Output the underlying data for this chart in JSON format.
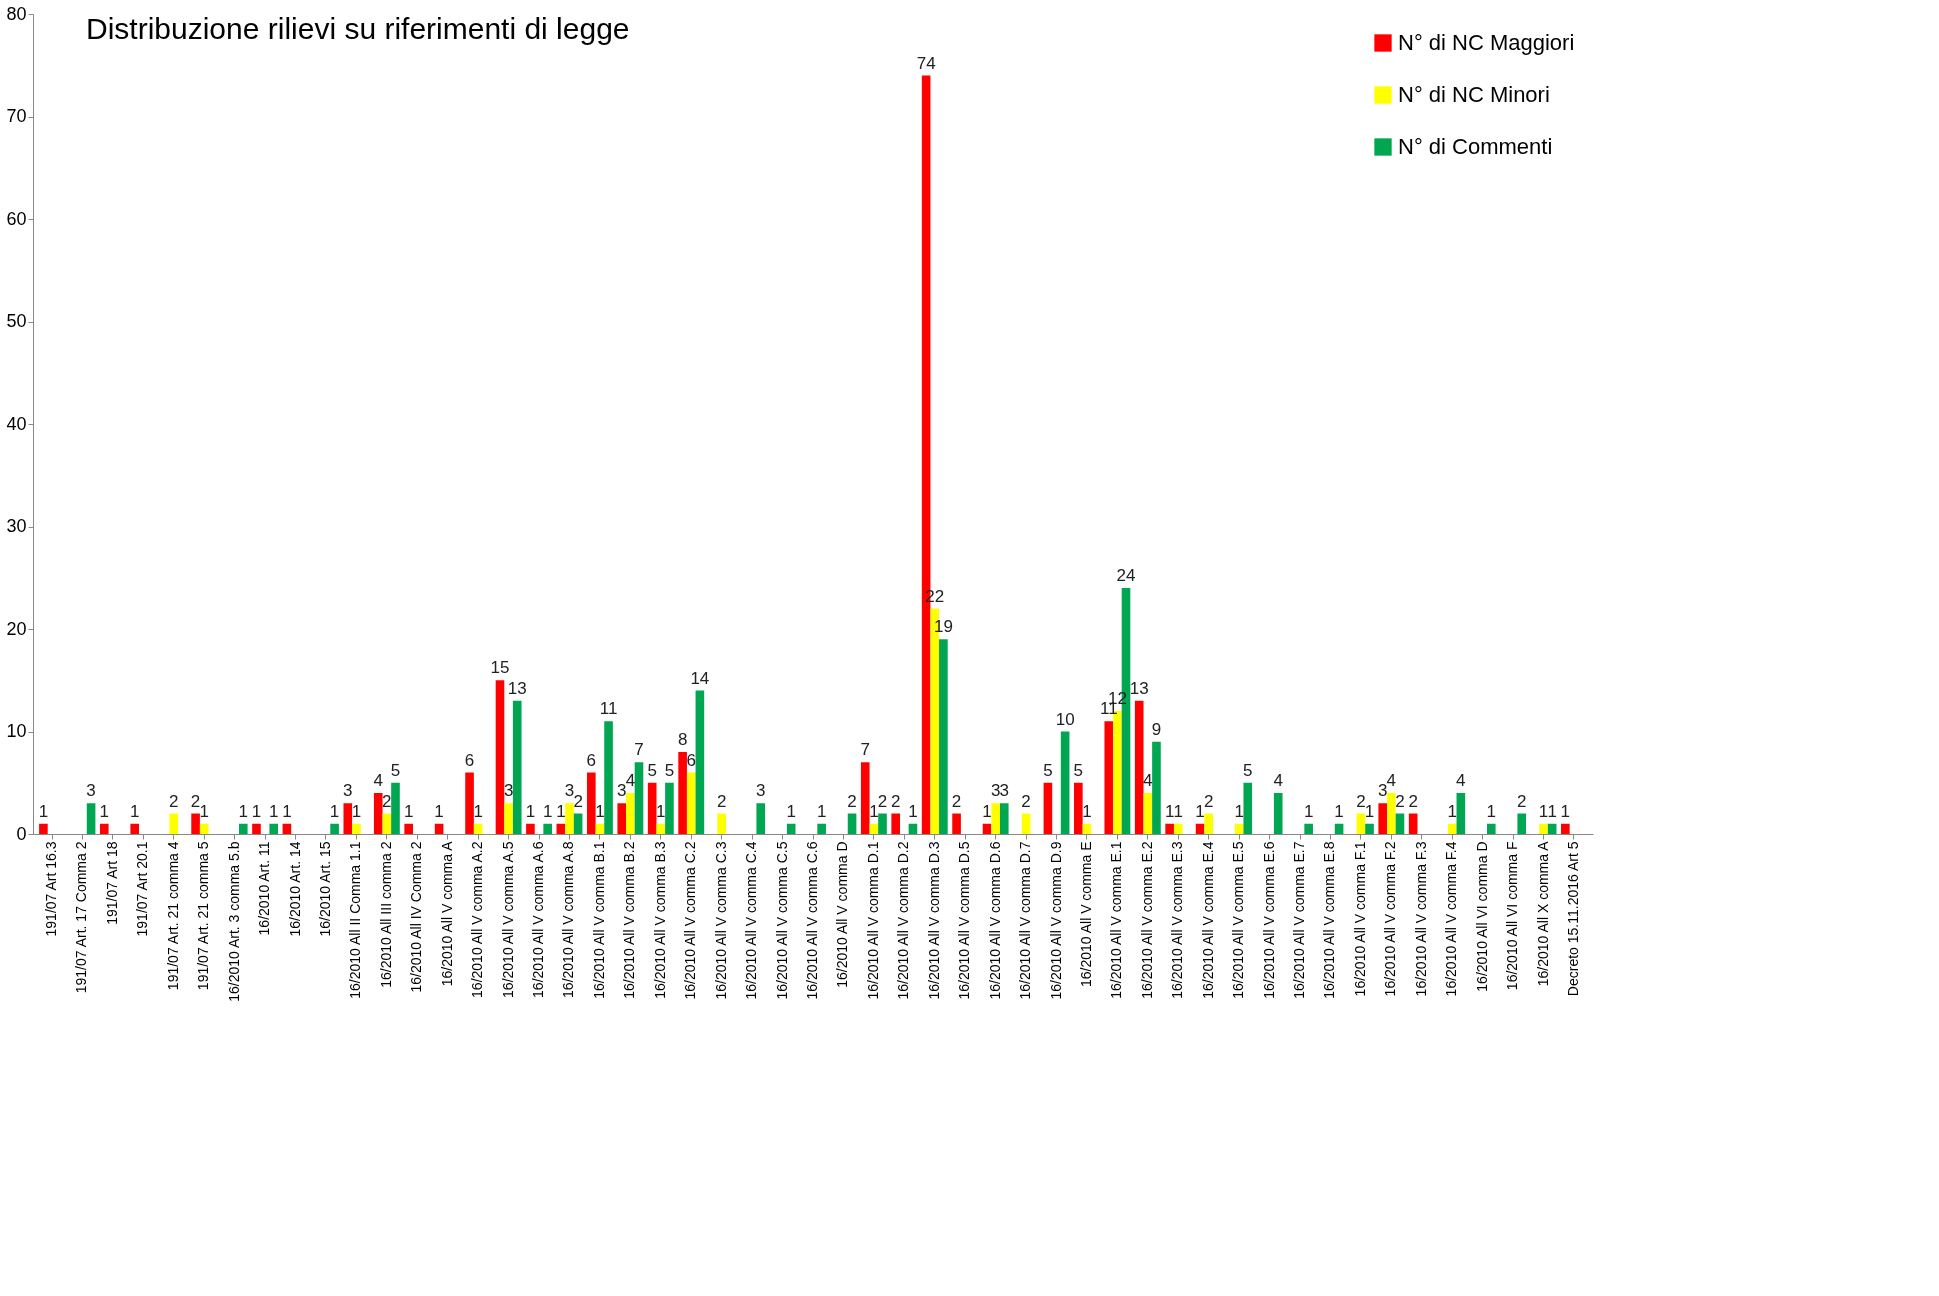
{
  "chart_data": {
    "type": "bar",
    "title": "Distribuzione rilievi su riferimenti di legge",
    "categories": [
      "191/07 Art 16.3",
      "191/07 Art. 17 Comma 2",
      "191/07 Art 18",
      "191/07 Art 20.1",
      "191/07 Art. 21 comma 4",
      "191/07 Art. 21 comma 5",
      "16/2010 Art. 3 comma 5.b",
      "16/2010 Art. 11",
      "16/2010 Art. 14",
      "16/2010 Art. 15",
      "16/2010 All II Comma 1.1",
      "16/2010 All III comma 2",
      "16/2010 All IV Comma 2",
      "16/2010 All V comma A",
      "16/2010 All V comma A.2",
      "16/2010 All V comma A.5",
      "16/2010 All V comma A.6",
      "16/2010 All V comma A.8",
      "16/2010 All V comma B.1",
      "16/2010 All V comma B.2",
      "16/2010 All V comma B.3",
      "16/2010 All V comma C.2",
      "16/2010 All V comma C.3",
      "16/2010 All V comma C.4",
      "16/2010 All V comma C.5",
      "16/2010 All V comma C.6",
      "16/2010 All V comma D",
      "16/2010 All V comma D.1",
      "16/2010 All V comma D.2",
      "16/2010 All V comma D.3",
      "16/2010 All V comma D.5",
      "16/2010 All V comma D.6",
      "16/2010 All V comma D.7",
      "16/2010 All V comma D.9",
      "16/2010 All V comma E",
      "16/2010 All V comma E.1",
      "16/2010 All V comma E.2",
      "16/2010 All V comma E.3",
      "16/2010 All V comma E.4",
      "16/2010 All V comma E.5",
      "16/2010 All V comma E.6",
      "16/2010 All V comma E.7",
      "16/2010 All V comma E.8",
      "16/2010 All V comma F.1",
      "16/2010 All V comma F.2",
      "16/2010 All V comma F.3",
      "16/2010 All V comma F.4",
      "16/2010 All VI comma D",
      "16/2010 All VI comma F",
      "16/2010 All X comma A",
      "Decreto 15.11.2016 Art 5"
    ],
    "series": [
      {
        "name": "N° di NC Maggiori",
        "color": "#ff0000",
        "values": [
          1,
          null,
          1,
          1,
          null,
          2,
          null,
          1,
          1,
          null,
          3,
          4,
          1,
          1,
          6,
          15,
          1,
          1,
          6,
          3,
          5,
          8,
          null,
          null,
          null,
          null,
          null,
          7,
          2,
          74,
          2,
          1,
          null,
          5,
          5,
          11,
          13,
          1,
          1,
          null,
          null,
          null,
          null,
          null,
          3,
          2,
          null,
          null,
          null,
          null,
          1
        ]
      },
      {
        "name": "N° di NC Minori",
        "color": "#ffff00",
        "values": [
          null,
          null,
          null,
          null,
          2,
          1,
          null,
          null,
          null,
          null,
          1,
          2,
          null,
          null,
          1,
          3,
          null,
          3,
          1,
          4,
          1,
          6,
          2,
          null,
          null,
          null,
          null,
          1,
          null,
          22,
          null,
          3,
          2,
          null,
          1,
          12,
          4,
          1,
          2,
          1,
          null,
          null,
          null,
          2,
          4,
          null,
          1,
          null,
          null,
          1,
          null
        ]
      },
      {
        "name": "N° di Commenti",
        "color": "#00a651",
        "values": [
          null,
          3,
          null,
          null,
          null,
          null,
          1,
          1,
          null,
          1,
          null,
          5,
          null,
          null,
          null,
          13,
          1,
          2,
          11,
          7,
          5,
          14,
          null,
          3,
          1,
          1,
          2,
          2,
          1,
          19,
          null,
          3,
          null,
          10,
          null,
          24,
          9,
          null,
          null,
          5,
          4,
          1,
          1,
          1,
          2,
          null,
          4,
          1,
          2,
          1,
          null
        ]
      }
    ],
    "ylim": [
      0,
      80
    ],
    "yticks": [
      0,
      10,
      20,
      30,
      40,
      50,
      60,
      70,
      80
    ],
    "grid": false,
    "legend": "top right",
    "data_labels": true
  }
}
